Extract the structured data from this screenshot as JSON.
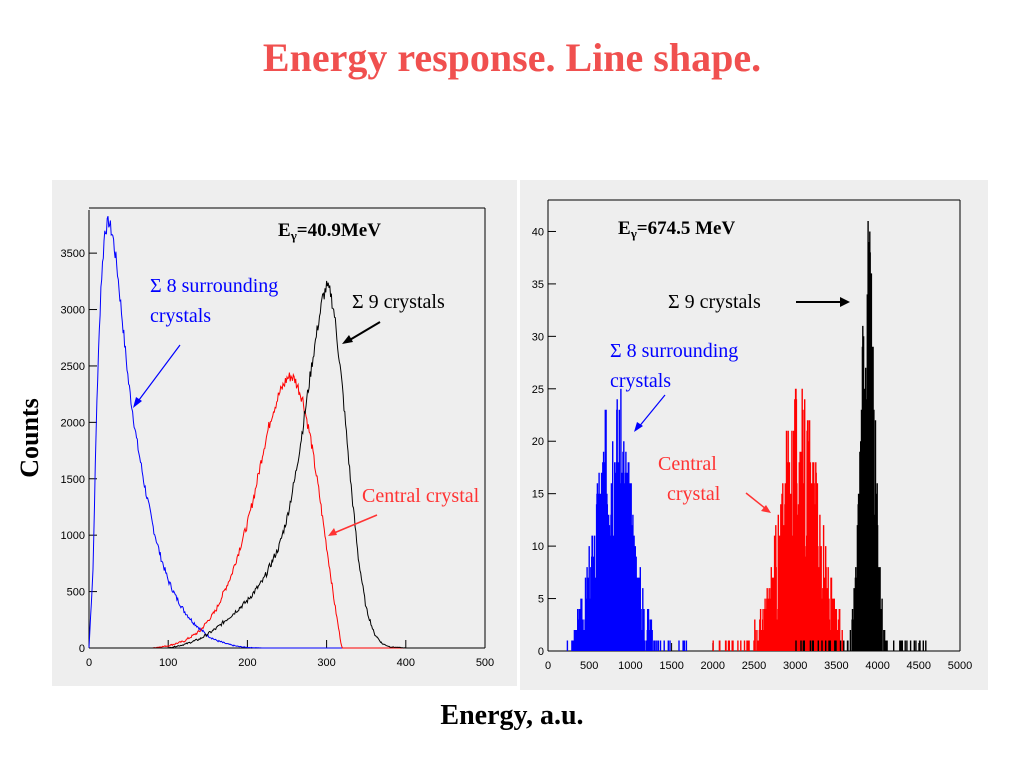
{
  "slide": {
    "title": "Energy response. Line shape.",
    "xlabel": "Energy, a.u.",
    "ylabel": "Counts"
  },
  "colors": {
    "title": "#f0504f",
    "blue": "#0000ff",
    "red": "#ff0000",
    "black": "#000000",
    "panel": "#eeeeee"
  },
  "chart_data": [
    {
      "type": "line",
      "title": "Eγ=40.9MeV",
      "title_main": "E",
      "title_sub": "γ",
      "title_rest": "=40.9MeV",
      "xlim": [
        0,
        500
      ],
      "ylim": [
        0,
        3900
      ],
      "xticks": [
        0,
        100,
        200,
        300,
        400,
        500
      ],
      "yticks": [
        0,
        500,
        1000,
        1500,
        2000,
        2500,
        3000,
        3500
      ],
      "grid": false,
      "annotations": {
        "sum8_line1": "Σ 8 surrounding",
        "sum8_line2": "crystals",
        "sum9": "Σ 9 crystals",
        "central": "Central crystal"
      },
      "series": [
        {
          "name": "Σ 8 surrounding crystals",
          "color": "#0000ff",
          "x": [
            0,
            5,
            10,
            15,
            20,
            25,
            30,
            35,
            40,
            45,
            50,
            60,
            70,
            80,
            90,
            100,
            110,
            120,
            130,
            140,
            150,
            160,
            170,
            180,
            190,
            200,
            210,
            220
          ],
          "y": [
            0,
            700,
            2200,
            3200,
            3700,
            3780,
            3650,
            3400,
            3050,
            2700,
            2350,
            1850,
            1450,
            1100,
            820,
            600,
            450,
            330,
            240,
            170,
            110,
            70,
            45,
            25,
            12,
            5,
            2,
            0
          ]
        },
        {
          "name": "Central crystal",
          "color": "#ff0000",
          "x": [
            0,
            80,
            100,
            120,
            140,
            160,
            180,
            200,
            210,
            220,
            230,
            240,
            250,
            255,
            260,
            270,
            280,
            290,
            300,
            305,
            310,
            315,
            318,
            320,
            340,
            500
          ],
          "y": [
            0,
            0,
            20,
            60,
            150,
            330,
            650,
            1100,
            1400,
            1750,
            2050,
            2250,
            2390,
            2410,
            2380,
            2200,
            1850,
            1400,
            900,
            650,
            400,
            180,
            50,
            0,
            0,
            0
          ]
        },
        {
          "name": "Σ 9 crystals",
          "color": "#000000",
          "x": [
            0,
            100,
            120,
            140,
            160,
            180,
            200,
            220,
            240,
            250,
            260,
            270,
            280,
            290,
            295,
            300,
            305,
            310,
            320,
            330,
            340,
            350,
            360,
            370,
            380,
            400,
            500
          ],
          "y": [
            0,
            0,
            30,
            80,
            170,
            290,
            420,
            600,
            900,
            1150,
            1500,
            1950,
            2450,
            2900,
            3100,
            3200,
            3150,
            2950,
            2300,
            1500,
            800,
            350,
            130,
            40,
            10,
            0,
            0
          ]
        }
      ]
    },
    {
      "type": "line",
      "title": "Eγ=674.5 MeV",
      "title_main": "E",
      "title_sub": "γ",
      "title_rest": "=674.5 MeV",
      "xlim": [
        0,
        5000
      ],
      "ylim": [
        0,
        43
      ],
      "xticks": [
        0,
        500,
        1000,
        1500,
        2000,
        2500,
        3000,
        3500,
        4000,
        4500,
        5000
      ],
      "yticks": [
        0,
        5,
        10,
        15,
        20,
        25,
        30,
        35,
        40
      ],
      "grid": false,
      "annotations": {
        "sum9": "Σ 9 crystals",
        "sum8_line1": "Σ 8 surrounding",
        "sum8_line2": "crystals",
        "central_line1": "Central",
        "central_line2": "crystal"
      },
      "series": [
        {
          "name": "Σ 8 surrounding crystals",
          "color": "#0000ff",
          "center": 800,
          "sigma": 190,
          "peak": 18,
          "from": 200,
          "to": 1700
        },
        {
          "name": "Central crystal",
          "color": "#ff0000",
          "center": 3050,
          "sigma": 210,
          "peak": 17,
          "from": 2000,
          "to": 3600
        },
        {
          "name": "Σ 9 crystals",
          "color": "#000000",
          "center": 3880,
          "sigma": 75,
          "peak": 32,
          "from": 3000,
          "to": 4600
        }
      ]
    }
  ]
}
